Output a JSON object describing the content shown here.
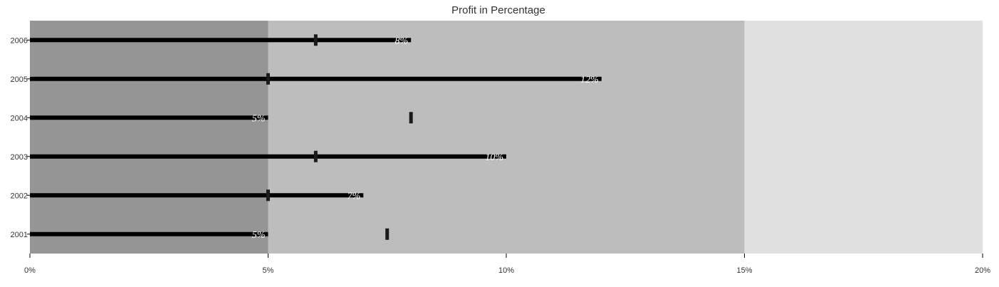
{
  "chart_data": {
    "type": "bar",
    "subtype": "bullet",
    "orientation": "horizontal",
    "title": "Profit in Percentage",
    "categories": [
      "2006",
      "2005",
      "2004",
      "2003",
      "2002",
      "2001"
    ],
    "values": [
      8,
      12,
      5,
      10,
      7,
      5
    ],
    "targets": [
      6,
      5,
      8,
      6,
      5,
      7.5
    ],
    "data_labels": [
      "8%",
      "12%",
      "5%",
      "10%",
      "7%",
      "5%"
    ],
    "bands": [
      {
        "from": 0,
        "to": 5,
        "color": "#959595"
      },
      {
        "from": 5,
        "to": 15,
        "color": "#bdbdbd"
      },
      {
        "from": 15,
        "to": 20,
        "color": "#e1e1e1"
      }
    ],
    "xlim": [
      0,
      20
    ],
    "xticks": [
      0,
      5,
      10,
      15,
      20
    ],
    "xtick_labels": [
      "0%",
      "5%",
      "10%",
      "15%",
      "20%"
    ],
    "xlabel": "",
    "ylabel": "",
    "bar_color": "#000000",
    "target_color": "#1a1a1a",
    "legend": false,
    "grid": false
  }
}
